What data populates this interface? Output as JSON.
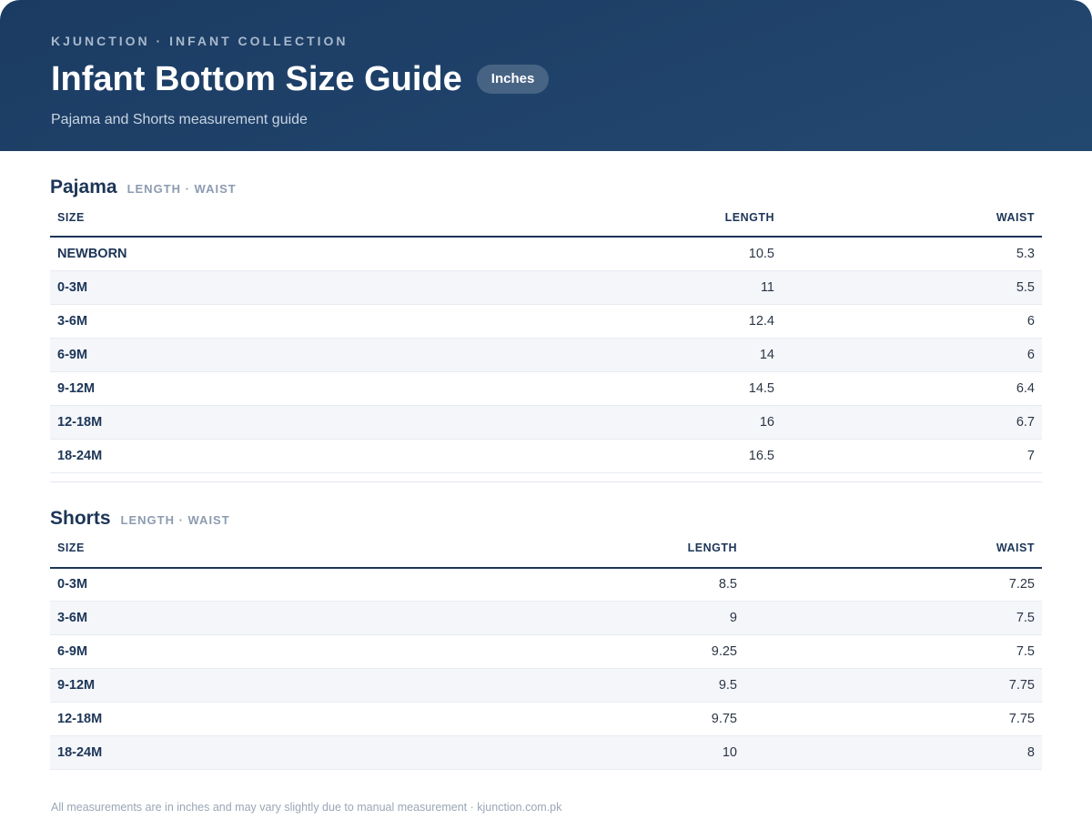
{
  "header": {
    "eyebrow": "KJUNCTION · INFANT COLLECTION",
    "title": "Infant Bottom Size Guide",
    "unit_badge": "Inches",
    "subtitle": "Pajama and Shorts measurement guide"
  },
  "pajama": {
    "title": "Pajama",
    "meta": "LENGTH · WAIST",
    "columns": [
      "SIZE",
      "LENGTH",
      "WAIST"
    ],
    "rows": [
      [
        "NEWBORN",
        "10.5",
        "5.3"
      ],
      [
        "0-3M",
        "11",
        "5.5"
      ],
      [
        "3-6M",
        "12.4",
        "6"
      ],
      [
        "6-9M",
        "14",
        "6"
      ],
      [
        "9-12M",
        "14.5",
        "6.4"
      ],
      [
        "12-18M",
        "16",
        "6.7"
      ],
      [
        "18-24M",
        "16.5",
        "7"
      ]
    ]
  },
  "shorts": {
    "title": "Shorts",
    "meta": "LENGTH · WAIST",
    "columns": [
      "SIZE",
      "LENGTH",
      "WAIST"
    ],
    "rows": [
      [
        "0-3M",
        "8.5",
        "7.25"
      ],
      [
        "3-6M",
        "9",
        "7.5"
      ],
      [
        "6-9M",
        "9.25",
        "7.5"
      ],
      [
        "9-12M",
        "9.5",
        "7.75"
      ],
      [
        "12-18M",
        "9.75",
        "7.75"
      ],
      [
        "18-24M",
        "10",
        "8"
      ]
    ]
  },
  "footer": {
    "note": "All measurements are in inches and may vary slightly due to manual measurement · kjunction.com.pk"
  },
  "colors": {
    "header_bg": "#1f4169",
    "accent_text": "#1c3557",
    "row_alt": "#f4f6fa"
  }
}
